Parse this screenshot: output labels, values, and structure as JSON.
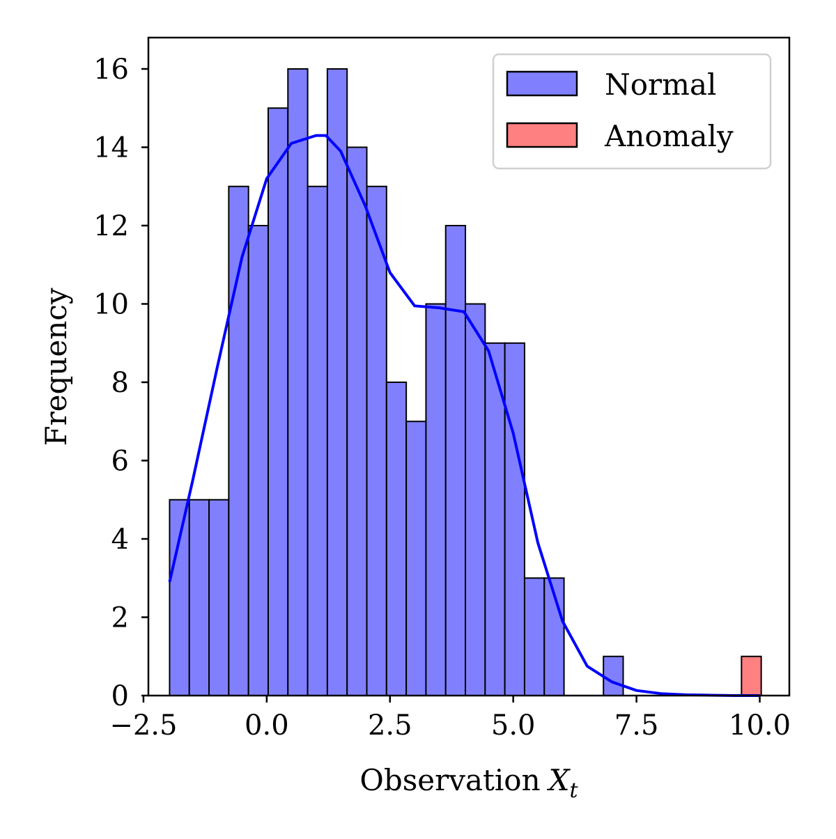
{
  "chart_data": {
    "type": "bar",
    "xlabel": "Observation",
    "xlabel_symbol": "X",
    "xlabel_subscript": "t",
    "ylabel": "Frequency",
    "xlim": [
      -2.4,
      10.6
    ],
    "ylim": [
      0,
      16.8
    ],
    "x_ticks": [
      -2.5,
      0.0,
      2.5,
      5.0,
      7.5,
      10.0
    ],
    "x_tick_labels": [
      "−2.5",
      "0.0",
      "2.5",
      "5.0",
      "7.5",
      "10.0"
    ],
    "y_ticks": [
      0,
      2,
      4,
      6,
      8,
      10,
      12,
      14,
      16
    ],
    "y_tick_labels": [
      "0",
      "2",
      "4",
      "6",
      "8",
      "10",
      "12",
      "14",
      "16"
    ],
    "grid": false,
    "legend_position": "top-right",
    "colors": {
      "normal": "#8080ff",
      "anomaly": "#ff8080",
      "kde": "#0000ff",
      "edge": "#000000"
    },
    "series": [
      {
        "name": "Normal",
        "kind": "histogram",
        "bin_edges": [
          -1.97,
          -1.57,
          -1.17,
          -0.77,
          -0.37,
          0.03,
          0.43,
          0.83,
          1.23,
          1.63,
          2.03,
          2.43,
          2.83,
          3.23,
          3.63,
          4.03,
          4.43,
          4.83,
          5.23,
          5.63,
          6.03,
          6.43,
          6.83,
          7.23
        ],
        "counts": [
          5,
          5,
          5,
          13,
          12,
          15,
          16,
          13,
          16,
          14,
          13,
          8,
          7,
          10,
          12,
          10,
          9,
          9,
          3,
          3,
          0,
          0,
          1
        ]
      },
      {
        "name": "Anomaly",
        "kind": "histogram",
        "bin_edges": [
          9.63,
          10.03
        ],
        "counts": [
          1
        ]
      },
      {
        "name": "KDE",
        "kind": "line",
        "x": [
          -1.97,
          -1.5,
          -1.0,
          -0.5,
          0.0,
          0.5,
          1.0,
          1.2,
          1.5,
          2.0,
          2.5,
          3.0,
          3.5,
          4.0,
          4.5,
          5.0,
          5.5,
          6.0,
          6.5,
          7.0,
          7.5,
          8.0,
          8.5,
          9.0,
          9.5,
          10.0
        ],
        "y": [
          2.9,
          5.5,
          8.4,
          11.2,
          13.2,
          14.1,
          14.3,
          14.3,
          13.9,
          12.5,
          10.8,
          9.95,
          9.9,
          9.8,
          8.8,
          6.7,
          3.9,
          1.9,
          0.75,
          0.35,
          0.13,
          0.05,
          0.02,
          0.01,
          0.0,
          0.0
        ]
      }
    ]
  }
}
